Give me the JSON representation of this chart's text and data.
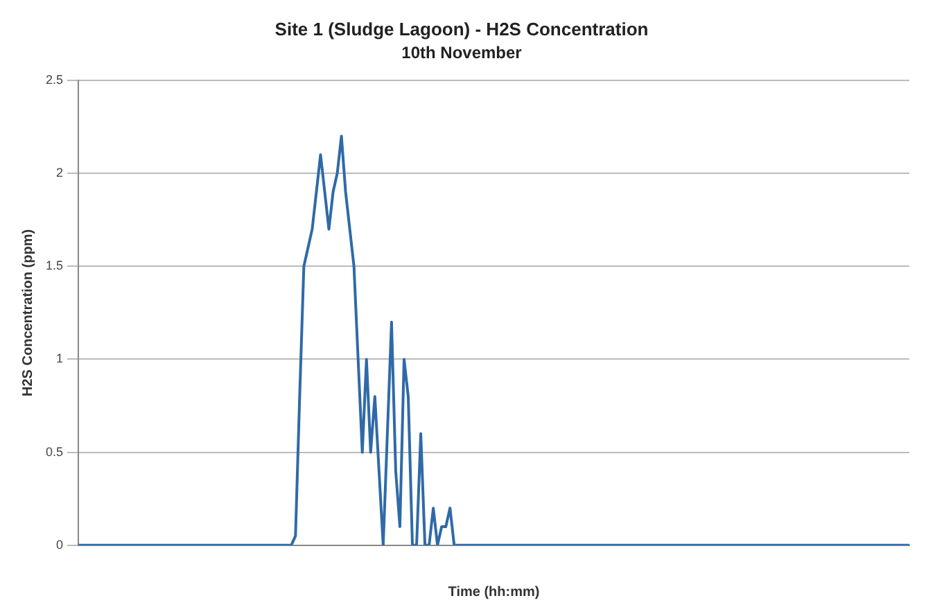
{
  "chart_data": {
    "type": "line",
    "title": "Site 1 (Sludge Lagoon) - H2S Concentration",
    "subtitle": "10th November",
    "xlabel": "Time (hh:mm)",
    "ylabel": "H2S Concentration (ppm)",
    "categories": [
      null,
      null,
      null,
      null,
      null,
      null,
      null,
      null,
      null,
      null,
      null,
      null,
      null,
      null,
      null,
      null,
      null,
      null,
      null,
      null,
      null,
      null,
      null,
      null,
      null,
      null,
      null,
      null,
      null,
      null,
      null,
      null,
      null,
      null,
      null,
      null,
      null,
      null,
      null,
      null,
      null,
      null,
      null,
      null,
      null,
      null,
      null,
      null,
      null,
      null,
      null,
      null,
      null,
      null,
      null,
      null,
      null,
      null,
      null,
      null,
      null,
      null,
      null,
      null,
      null,
      null,
      null,
      null,
      null,
      null,
      null,
      null,
      null,
      null,
      null,
      null,
      null,
      null,
      null,
      null,
      null,
      null,
      null,
      null,
      null,
      null,
      null,
      null,
      null,
      null,
      null,
      null,
      null,
      null,
      null,
      null,
      null,
      null,
      null,
      null,
      null,
      null,
      null,
      null,
      null,
      null,
      null,
      null,
      null,
      null,
      null,
      null,
      null,
      null,
      null,
      null,
      null,
      null,
      null,
      null,
      null,
      null,
      null,
      null,
      null,
      null,
      null,
      null,
      null,
      null,
      null,
      null,
      null,
      null,
      null,
      null,
      null,
      null,
      null,
      null,
      null,
      null,
      null,
      null,
      null,
      null,
      null,
      null,
      null,
      null,
      null,
      null,
      null,
      null,
      null,
      null,
      null,
      null,
      null,
      null,
      null,
      null,
      null,
      null,
      null,
      null,
      null,
      null,
      null,
      null,
      null,
      null,
      null,
      null,
      null,
      null,
      null,
      null,
      null,
      null,
      null,
      null,
      null,
      null,
      null,
      null,
      null,
      null,
      null,
      null,
      null,
      null,
      null,
      null,
      null,
      null,
      null,
      null,
      null,
      null
    ],
    "series": [
      {
        "color": "#2f6aa8",
        "values": [
          0,
          0,
          0,
          0,
          0,
          0,
          0,
          0,
          0,
          0,
          0,
          0,
          0,
          0,
          0,
          0,
          0,
          0,
          0,
          0,
          0,
          0,
          0,
          0,
          0,
          0,
          0,
          0,
          0,
          0,
          0,
          0,
          0,
          0,
          0,
          0,
          0,
          0,
          0,
          0,
          0,
          0,
          0,
          0,
          0,
          0,
          0,
          0,
          0,
          0,
          0,
          0,
          0.05,
          0.8,
          1.5,
          1.6,
          1.7,
          1.9,
          2.1,
          1.9,
          1.7,
          1.9,
          2.0,
          2.2,
          1.9,
          1.7,
          1.5,
          1.0,
          0.5,
          1.0,
          0.5,
          0.8,
          0.4,
          0,
          0.6,
          1.2,
          0.4,
          0.1,
          1.0,
          0.8,
          0,
          0,
          0.6,
          0,
          0,
          0.2,
          0,
          0.1,
          0.1,
          0.2,
          0,
          0,
          0,
          0,
          0,
          0,
          0,
          0,
          0,
          0,
          0,
          0,
          0,
          0,
          0,
          0,
          0,
          0,
          0,
          0,
          0,
          0,
          0,
          0,
          0,
          0,
          0,
          0,
          0,
          0,
          0,
          0,
          0,
          0,
          0,
          0,
          0,
          0,
          0,
          0,
          0,
          0,
          0,
          0,
          0,
          0,
          0,
          0,
          0,
          0,
          0,
          0,
          0,
          0,
          0,
          0,
          0,
          0,
          0,
          0,
          0,
          0,
          0,
          0,
          0,
          0,
          0,
          0,
          0,
          0,
          0,
          0,
          0,
          0,
          0,
          0,
          0,
          0,
          0,
          0,
          0,
          0,
          0,
          0,
          0,
          0,
          0,
          0,
          0,
          0,
          0,
          0,
          0,
          0,
          0,
          0,
          0,
          0,
          0,
          0,
          0,
          0,
          0,
          0,
          0,
          0,
          0,
          0,
          0,
          0
        ]
      }
    ],
    "ylim": [
      0,
      2.5
    ],
    "yticks": [
      0,
      0.5,
      1,
      1.5,
      2,
      2.5
    ],
    "grid": "y",
    "legend": false,
    "marker": "none",
    "line_style": "solid"
  }
}
